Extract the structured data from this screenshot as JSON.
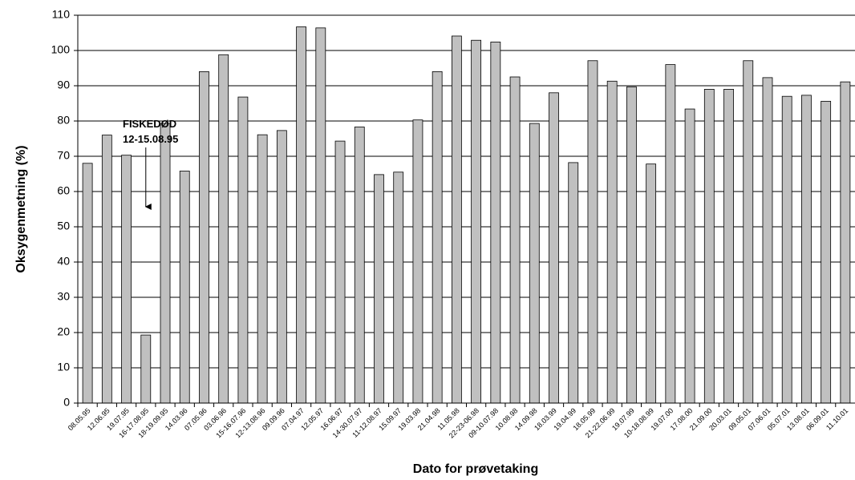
{
  "chart_data": {
    "type": "bar",
    "x_label": "Dato for prøvetaking",
    "y_label": "Oksygenmetning (%)",
    "annotation": [
      "FISKEDØD",
      "12-15.08.95"
    ],
    "categories": [
      "08.05.95",
      "12.06.95",
      "19.07.95",
      "16-17.08.95",
      "18-19.09.95",
      "14.03.96",
      "07.05.96",
      "03.06.96",
      "15-16.07.96",
      "12-13.08.96",
      "09.09.96",
      "07.04.97",
      "12.05.97",
      "16.06.97",
      "14-30.07.97",
      "11-12.08.97",
      "15.09.97",
      "19.03.98",
      "21.04.98",
      "11.05.98",
      "22-23-06.98",
      "09-10.07.98",
      "10.08.98",
      "14.09.98",
      "18.03.99",
      "19.04.99",
      "18.05.99",
      "21-22.06.99",
      "19.07.99",
      "10-18.08.99",
      "19.07.00",
      "17.08.00",
      "21.09.00",
      "20.03.01",
      "09.05.01",
      "07.06.01",
      "05.07.01",
      "13.08.01",
      "06.09.01",
      "11.10.01"
    ],
    "values": [
      68,
      76,
      70.3,
      19.3,
      79.3,
      65.8,
      94,
      98.8,
      86.8,
      76.1,
      77.3,
      106.7,
      106.4,
      74.3,
      78.3,
      64.8,
      65.5,
      80.3,
      94,
      104.1,
      102.9,
      102.4,
      92.5,
      79.3,
      88,
      68.2,
      97.1,
      91.3,
      89.7,
      67.8,
      96,
      83.4,
      89,
      89,
      97.1,
      92.3,
      87,
      87.3,
      85.6,
      91.1
    ],
    "color": "#c0c0c0",
    "ylim": [
      0,
      110
    ],
    "yticks": [
      0,
      10,
      20,
      30,
      40,
      50,
      60,
      70,
      80,
      90,
      100,
      110
    ],
    "grid": true
  }
}
